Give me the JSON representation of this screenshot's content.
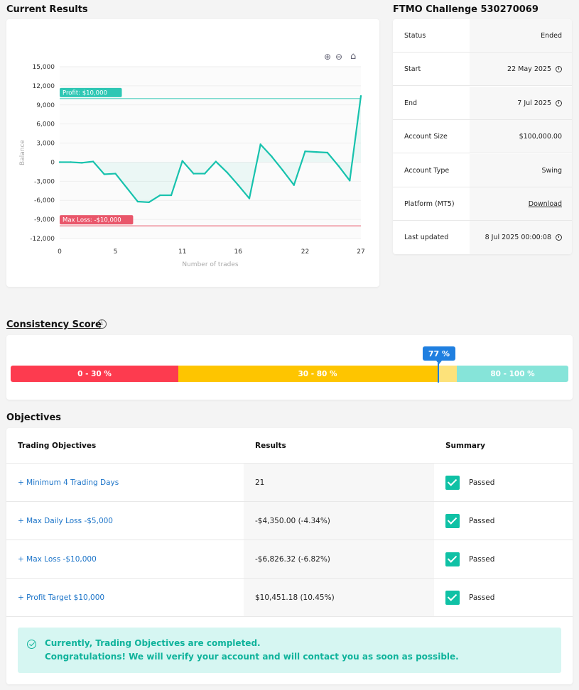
{
  "results": {
    "title": "Current Results"
  },
  "chart_data": {
    "type": "line",
    "xlabel": "Number of trades",
    "ylabel": "Balance",
    "xlim": [
      0,
      27
    ],
    "ylim": [
      -12000,
      15000
    ],
    "x_ticks": [
      "0",
      "5",
      "11",
      "16",
      "22",
      "27"
    ],
    "y_ticks": [
      "15,000",
      "12,000",
      "9,000",
      "6,000",
      "3,000",
      "0",
      "-3,000",
      "-6,000",
      "-9,000",
      "-12,000"
    ],
    "series": [
      {
        "x": [
          0,
          1,
          2,
          3,
          4,
          5,
          6,
          7,
          8,
          9,
          10,
          11,
          12,
          13,
          14,
          15,
          16,
          17,
          18,
          19,
          20,
          21,
          22,
          23,
          24,
          25,
          26,
          27
        ],
        "values": [
          0,
          0,
          -100,
          100,
          -1900,
          -1800,
          -4000,
          -6200,
          -6300,
          -5200,
          -5200,
          200,
          -1800,
          -1800,
          100,
          -1600,
          -3600,
          -5700,
          2800,
          900,
          -1300,
          -3600,
          1700,
          1600,
          1500,
          -600,
          -2900,
          10400
        ]
      }
    ],
    "annotations": [
      {
        "label": "Profit: $10,000",
        "y": 10000,
        "color": "#2ec7b4"
      },
      {
        "label": "Max Loss: -$10,000",
        "y": -10000,
        "color": "#e9566a"
      }
    ],
    "grid": true
  },
  "toolbar": {
    "zoom_in_icon": "zoom-in-icon",
    "zoom_out_icon": "zoom-out-icon",
    "home_icon": "home-icon"
  },
  "challenge": {
    "title": "FTMO Challenge 530270069",
    "rows": [
      {
        "label": "Status",
        "value": "Ended"
      },
      {
        "label": "Start",
        "value": "22 May 2025"
      },
      {
        "label": "End",
        "value": "7 Jul 2025"
      },
      {
        "label": "Account Size",
        "value": "$100,000.00"
      },
      {
        "label": "Account Type",
        "value": "Swing"
      },
      {
        "label": "Platform (MT5)",
        "value": "Download"
      },
      {
        "label": "Last updated",
        "value": "8 Jul 2025 00:00:08"
      }
    ]
  },
  "consistency": {
    "title": "Consistency Score",
    "score": 77,
    "score_label": "77 %",
    "segments": [
      {
        "label": "0 - 30 %",
        "from": 0,
        "to": 30,
        "color": "#fd3b4f"
      },
      {
        "label": "30 - 80 %",
        "from": 30,
        "to": 80,
        "color": "#fec500"
      },
      {
        "label": "80 - 100 %",
        "from": 80,
        "to": 100,
        "color": "#86e4d9"
      }
    ]
  },
  "objectives": {
    "title": "Objectives",
    "headers": {
      "objective": "Trading Objectives",
      "results": "Results",
      "summary": "Summary"
    },
    "rows": [
      {
        "objective": "+ Minimum 4 Trading Days",
        "result": "21",
        "summary": "Passed"
      },
      {
        "objective": "+ Max Daily Loss -$5,000",
        "result": "-$4,350.00 (-4.34%)",
        "summary": "Passed"
      },
      {
        "objective": "+ Max Loss -$10,000",
        "result": "-$6,826.32 (-6.82%)",
        "summary": "Passed"
      },
      {
        "objective": "+ Profit Target $10,000",
        "result": "$10,451.18 (10.45%)",
        "summary": "Passed"
      }
    ],
    "banner": {
      "line1": "Currently, Trading Objectives are completed.",
      "line2": "Congratulations! We will verify your account and will contact you as soon as possible."
    }
  }
}
